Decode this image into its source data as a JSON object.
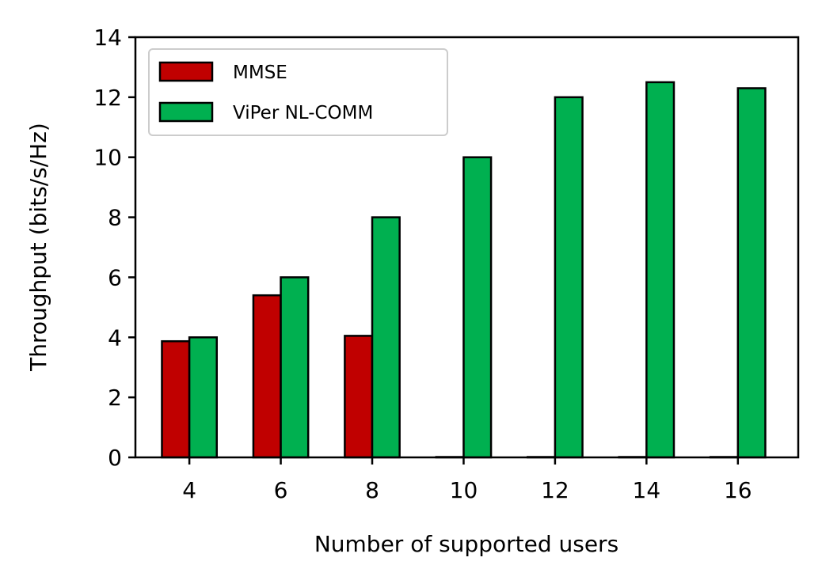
{
  "chart_data": {
    "type": "bar",
    "categories": [
      "4",
      "6",
      "8",
      "10",
      "12",
      "14",
      "16"
    ],
    "series": [
      {
        "name": "MMSE",
        "values": [
          3.87,
          5.4,
          4.05,
          0,
          0,
          0,
          0
        ],
        "color": "#c00000"
      },
      {
        "name": "ViPer NL-COMM",
        "values": [
          4.0,
          6.0,
          8.0,
          10.0,
          12.0,
          12.5,
          12.3
        ],
        "color": "#00b050"
      }
    ],
    "xlabel": "Number of supported users",
    "ylabel": "Throughput (bits/s/Hz)",
    "ylim": [
      0,
      14
    ],
    "yticks": [
      0,
      2,
      4,
      6,
      8,
      10,
      12,
      14
    ],
    "grid": false,
    "legend": "top-left"
  }
}
